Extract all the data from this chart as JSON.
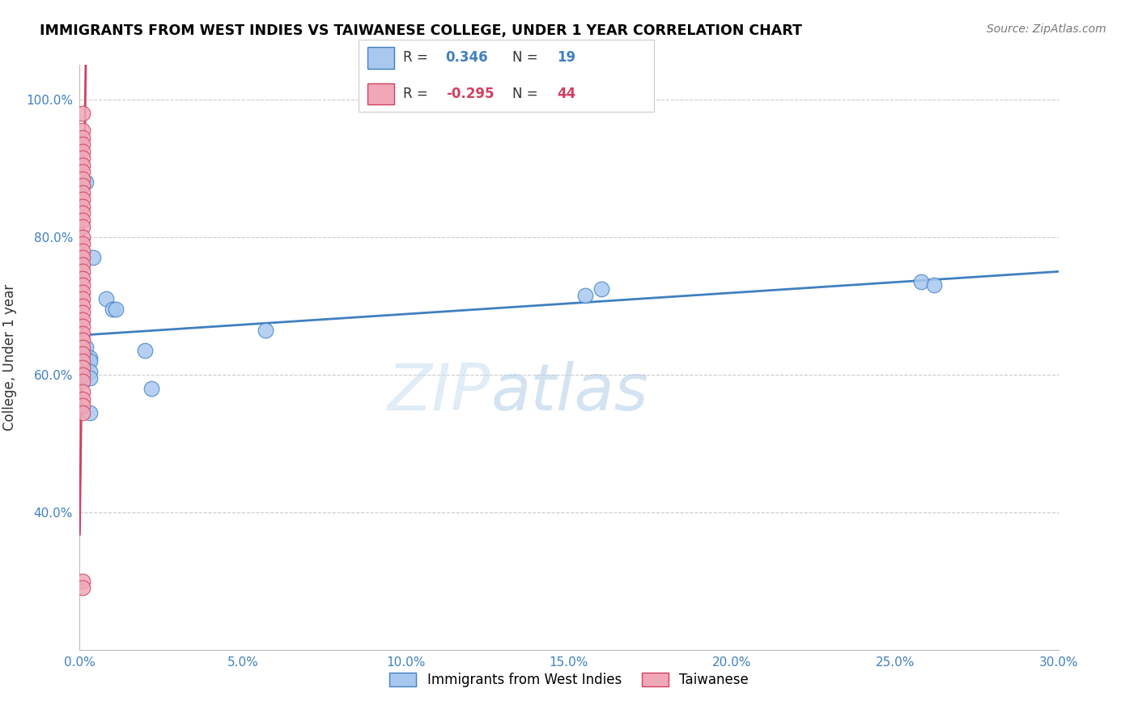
{
  "title": "IMMIGRANTS FROM WEST INDIES VS TAIWANESE COLLEGE, UNDER 1 YEAR CORRELATION CHART",
  "source": "Source: ZipAtlas.com",
  "ylabel": "College, Under 1 year",
  "xlim": [
    0.0,
    0.3
  ],
  "ylim": [
    0.2,
    1.05
  ],
  "xticks": [
    0.0,
    0.05,
    0.1,
    0.15,
    0.2,
    0.25,
    0.3
  ],
  "xtick_labels": [
    "0.0%",
    "5.0%",
    "10.0%",
    "15.0%",
    "20.0%",
    "25.0%",
    "30.0%"
  ],
  "yticks": [
    0.4,
    0.6,
    0.8,
    1.0
  ],
  "ytick_labels": [
    "40.0%",
    "60.0%",
    "80.0%",
    "100.0%"
  ],
  "legend_label1": "Immigrants from West Indies",
  "legend_label2": "Taiwanese",
  "R1": "0.346",
  "N1": "19",
  "R2": "-0.295",
  "N2": "44",
  "color_blue": "#a8c8f0",
  "color_pink": "#f0a8b8",
  "trendline_blue": "#4080c0",
  "trendline_pink": "#d04060",
  "trendline_pink_dash": "#e090a8",
  "watermark_zi": "ZIP",
  "watermark_atlas": "atlas",
  "west_indies_x": [
    0.002,
    0.004,
    0.008,
    0.01,
    0.011,
    0.02,
    0.022,
    0.002,
    0.002,
    0.003,
    0.003,
    0.003,
    0.003,
    0.003,
    0.155,
    0.16,
    0.057,
    0.258,
    0.262
  ],
  "west_indies_y": [
    0.88,
    0.77,
    0.71,
    0.695,
    0.695,
    0.635,
    0.58,
    0.64,
    0.625,
    0.625,
    0.62,
    0.605,
    0.595,
    0.545,
    0.715,
    0.725,
    0.665,
    0.735,
    0.73
  ],
  "taiwanese_x": [
    0.001,
    0.001,
    0.001,
    0.001,
    0.001,
    0.001,
    0.001,
    0.001,
    0.001,
    0.001,
    0.001,
    0.001,
    0.001,
    0.001,
    0.001,
    0.001,
    0.001,
    0.001,
    0.001,
    0.001,
    0.001,
    0.001,
    0.001,
    0.001,
    0.001,
    0.001,
    0.001,
    0.001,
    0.001,
    0.001,
    0.001,
    0.001,
    0.001,
    0.001,
    0.001,
    0.001,
    0.001,
    0.001,
    0.001,
    0.001,
    0.001,
    0.001,
    0.001,
    0.001
  ],
  "taiwanese_y": [
    0.98,
    0.955,
    0.945,
    0.935,
    0.925,
    0.915,
    0.905,
    0.895,
    0.885,
    0.875,
    0.865,
    0.855,
    0.845,
    0.835,
    0.825,
    0.815,
    0.8,
    0.79,
    0.78,
    0.77,
    0.76,
    0.75,
    0.74,
    0.73,
    0.72,
    0.71,
    0.7,
    0.69,
    0.68,
    0.67,
    0.66,
    0.65,
    0.64,
    0.63,
    0.62,
    0.61,
    0.6,
    0.59,
    0.575,
    0.565,
    0.555,
    0.545,
    0.3,
    0.29
  ]
}
